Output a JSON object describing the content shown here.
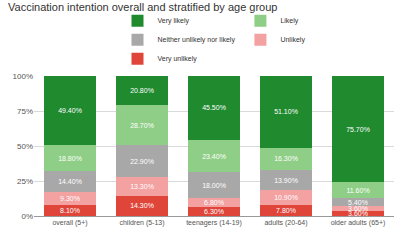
{
  "chart_data": {
    "type": "bar",
    "title": "Vaccination intention overall and stratified by age group",
    "categories": [
      "overall (5+)",
      "children (5-13)",
      "teenagers (14-19)",
      "adults (20-64)",
      "older adults (65+)"
    ],
    "stacked": true,
    "data_labels": true,
    "legend": "top",
    "grid": true,
    "ylim": [
      0,
      100
    ],
    "yticks": [
      {
        "value": 0,
        "label": "0%"
      },
      {
        "value": 25,
        "label": "25%"
      },
      {
        "value": 50,
        "label": "50%"
      },
      {
        "value": 75,
        "label": "75%"
      },
      {
        "value": 100,
        "label": "100%"
      }
    ],
    "series": [
      {
        "name": "Very unlikely",
        "color": "#e0453a",
        "values": [
          8.1,
          14.3,
          6.3,
          7.8,
          3.6
        ],
        "value_labels": [
          "8.10%",
          "14.30%",
          "6.30%",
          "7.80%",
          "3.60%"
        ]
      },
      {
        "name": "Unlikely",
        "color": "#f3a1a1",
        "values": [
          9.3,
          13.3,
          6.8,
          10.9,
          3.6
        ],
        "value_labels": [
          "9.30%",
          "13.30%",
          "6.80%",
          "10.90%",
          "3.60%"
        ]
      },
      {
        "name": "Neither unlikely nor likely",
        "color": "#a8a8a8",
        "values": [
          14.4,
          22.9,
          18.0,
          13.9,
          5.4
        ],
        "value_labels": [
          "14.40%",
          "22.90%",
          "18.00%",
          "13.90%",
          "5.40%"
        ]
      },
      {
        "name": "Likely",
        "color": "#8fce86",
        "values": [
          18.8,
          28.7,
          23.4,
          16.3,
          11.6
        ],
        "value_labels": [
          "18.80%",
          "28.70%",
          "23.40%",
          "16.30%",
          "11.60%"
        ]
      },
      {
        "name": "Very likely",
        "color": "#1f8a2e",
        "values": [
          49.4,
          20.8,
          45.5,
          51.1,
          75.7
        ],
        "value_labels": [
          "49.40%",
          "20.80%",
          "45.50%",
          "51.10%",
          "75.70%"
        ]
      }
    ]
  }
}
